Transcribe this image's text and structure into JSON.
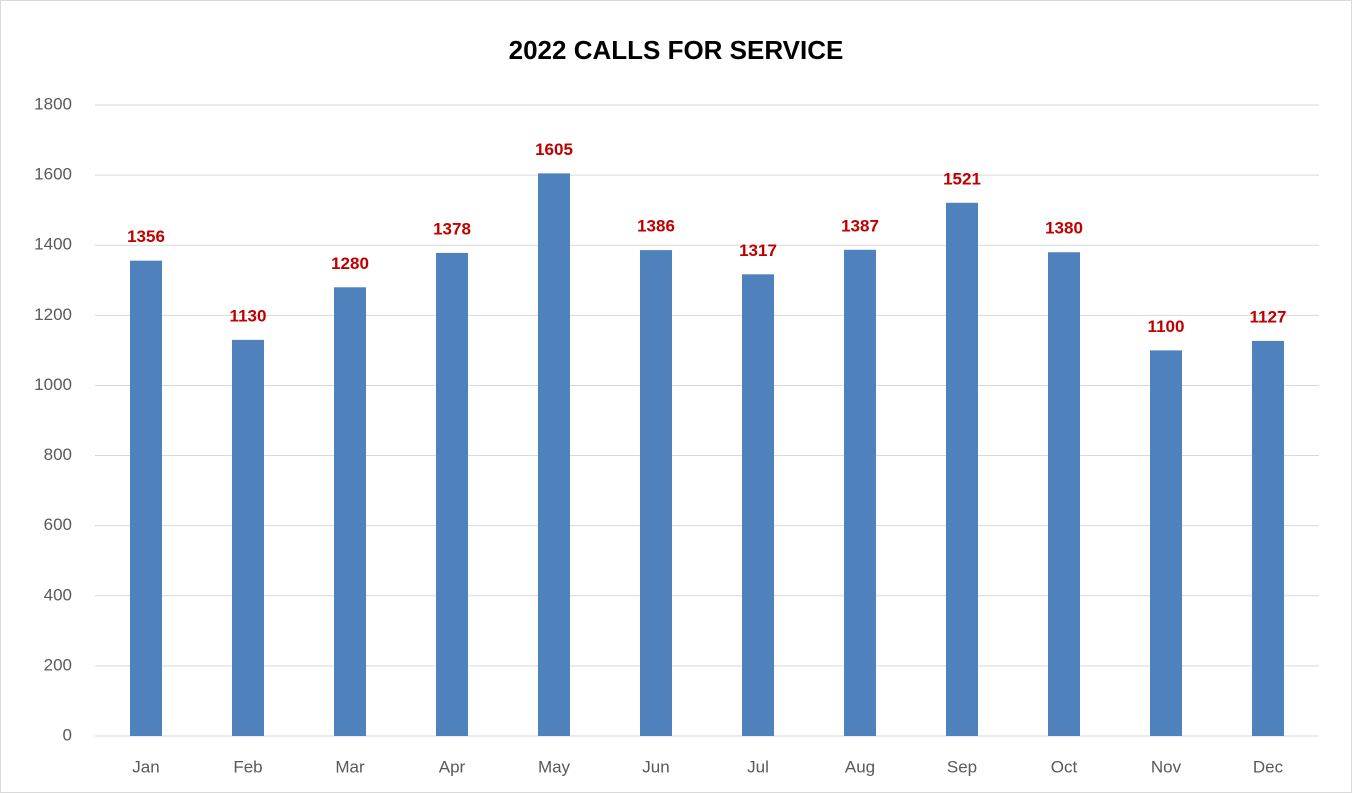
{
  "chart_data": {
    "type": "bar",
    "title": "2022 CALLS FOR SERVICE",
    "categories": [
      "Jan",
      "Feb",
      "Mar",
      "Apr",
      "May",
      "Jun",
      "Jul",
      "Aug",
      "Sep",
      "Oct",
      "Nov",
      "Dec"
    ],
    "values": [
      1356,
      1130,
      1280,
      1378,
      1605,
      1386,
      1317,
      1387,
      1521,
      1380,
      1100,
      1127
    ],
    "color": "#4f81bd",
    "data_label_color": "#c00000",
    "ylim": [
      0,
      1800
    ],
    "yticks": [
      0,
      200,
      400,
      600,
      800,
      1000,
      1200,
      1400,
      1600,
      1800
    ],
    "grid": true
  }
}
